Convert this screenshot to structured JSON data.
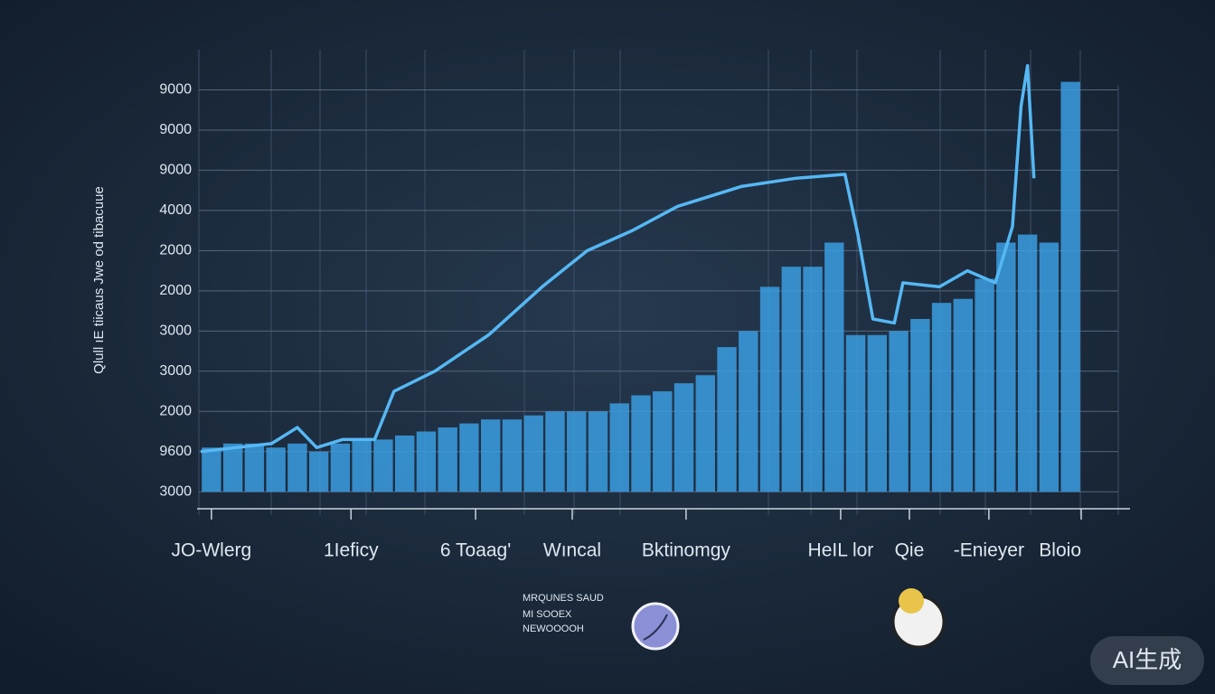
{
  "chart_data": {
    "type": "bar",
    "ylabel": "Qlull ıE tiicaus Jwe od tibacuue",
    "x": [
      0,
      1,
      2,
      3,
      4,
      5,
      6,
      7,
      8,
      9,
      10,
      11,
      12,
      13,
      14,
      15,
      16,
      17,
      18,
      19,
      20,
      21,
      22,
      23,
      24,
      25,
      26,
      27,
      28,
      29,
      30,
      31,
      32,
      33,
      34,
      35,
      36,
      37,
      38,
      39,
      40
    ],
    "values": [
      1.1,
      1.2,
      1.2,
      1.1,
      1.2,
      1.0,
      1.2,
      1.3,
      1.3,
      1.4,
      1.5,
      1.6,
      1.7,
      1.8,
      1.8,
      1.9,
      2.0,
      2.0,
      2.0,
      2.2,
      2.4,
      2.5,
      2.7,
      2.9,
      3.6,
      4.0,
      5.1,
      5.6,
      5.6,
      6.2,
      3.9,
      3.9,
      4.0,
      4.3,
      4.7,
      4.8,
      5.3,
      6.2,
      6.4,
      6.2,
      10.2
    ],
    "color": "#3a9de2",
    "line": {
      "color": "#55b8f4",
      "x": [
        0,
        3.3,
        4.5,
        5.4,
        6.6,
        8.1,
        9.0,
        10.9,
        13.4,
        15.9,
        18.0,
        20.1,
        22.2,
        25.2,
        27.7,
        30.0,
        30.6,
        31.3,
        32.3,
        32.7,
        34.4,
        35.7,
        37.0,
        37.8,
        38.2,
        38.5,
        38.8
      ],
      "values": [
        1.0,
        1.2,
        1.6,
        1.1,
        1.3,
        1.3,
        2.5,
        3.0,
        3.9,
        5.1,
        6.0,
        6.5,
        7.1,
        7.6,
        7.8,
        7.9,
        6.4,
        4.3,
        4.2,
        5.2,
        5.1,
        5.5,
        5.2,
        6.6,
        9.6,
        10.6,
        7.8
      ]
    },
    "xlim": [
      0,
      41
    ],
    "xticks": [
      {
        "value": 0.5,
        "label": "JO-Wlerg"
      },
      {
        "value": 7.0,
        "label": "1Ieficy"
      },
      {
        "value": 12.8,
        "label": "6 Toaag'"
      },
      {
        "value": 17.3,
        "label": "Wıncal"
      },
      {
        "value": 22.6,
        "label": "Bktinomgy"
      },
      {
        "value": 29.8,
        "label": "HeIL lor"
      },
      {
        "value": 33.0,
        "label": "Qie"
      },
      {
        "value": 36.7,
        "label": "-Enieyer"
      },
      {
        "value": 41.0,
        "label": "Bloio"
      }
    ],
    "ylim": [
      -0.4,
      11
    ],
    "yticks": [
      {
        "value": 0,
        "label": "3000"
      },
      {
        "value": 1,
        "label": "9600"
      },
      {
        "value": 2,
        "label": "2000"
      },
      {
        "value": 3,
        "label": "3000"
      },
      {
        "value": 4,
        "label": "3000"
      },
      {
        "value": 5,
        "label": "2000"
      },
      {
        "value": 6,
        "label": "2000"
      },
      {
        "value": 7,
        "label": "4000"
      },
      {
        "value": 8,
        "label": "9000"
      },
      {
        "value": 9,
        "label": "9000"
      },
      {
        "value": 10,
        "label": "9000"
      }
    ],
    "grid": true,
    "annotations": [
      "MRQUNES SAUD",
      "MI SOOEX",
      "NEWOOOOH"
    ],
    "badge": "AI生成"
  }
}
